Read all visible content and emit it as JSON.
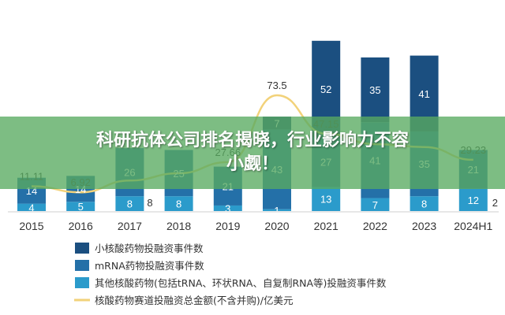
{
  "overlay": {
    "line1": "科研抗体公司排名揭晓，行业影响力不容",
    "line2": "小觑！"
  },
  "colors": {
    "small_nucleic": "#1b4f80",
    "mrna": "#2470a8",
    "other": "#2b9bcb",
    "line": "#f2d27a",
    "text": "#333333",
    "axis": "#cfcfcf"
  },
  "chart_data": {
    "type": "bar",
    "stacked": true,
    "categories": [
      "2015",
      "2016",
      "2017",
      "2018",
      "2019",
      "2020",
      "2021",
      "2022",
      "2023",
      "2024H1"
    ],
    "series": [
      {
        "name": "其他核酸药物(包括tRNA、环状RNA、自复制RNA等)投融资事件数",
        "color_key": "other",
        "values": [
          4,
          5,
          8,
          8,
          3,
          1,
          13,
          7,
          8,
          12
        ]
      },
      {
        "name": "mRNA药物投融资事件数",
        "color_key": "mrna",
        "values": [
          14,
          14,
          26,
          25,
          21,
          43,
          27,
          41,
          35,
          21
        ]
      },
      {
        "name": "小核酸药物投融资事件数",
        "color_key": "small_nucleic",
        "values": [
          0,
          0,
          0,
          0,
          0,
          7,
          52,
          35,
          41,
          0
        ]
      }
    ],
    "bar_labels": [
      [
        "4",
        "14"
      ],
      [
        "5",
        "14"
      ],
      [
        "8",
        "26"
      ],
      [
        "8",
        "25"
      ],
      [
        "3",
        "21"
      ],
      [
        "1",
        "43",
        "7"
      ],
      [
        "13",
        "27",
        "52"
      ],
      [
        "7",
        "41",
        "35"
      ],
      [
        "8",
        "35",
        "41"
      ],
      [
        "12",
        "21"
      ]
    ],
    "line_series": {
      "name": "核酸药物赛道投融资总金额(不含并购)/亿美元",
      "values": [
        11.11,
        6.92,
        15.0,
        20.0,
        27.66,
        73.5,
        47.15,
        40.0,
        38.0,
        29.23
      ],
      "labels": [
        "11.11",
        "6.92",
        "",
        "",
        "27.66",
        "73.5",
        "47.15",
        "",
        "",
        "29.23"
      ],
      "extra_labels": [
        {
          "index": 9,
          "text": "2"
        },
        {
          "index": 2,
          "text": "8"
        }
      ]
    },
    "legend_position": "bottom-left",
    "grid": false
  }
}
